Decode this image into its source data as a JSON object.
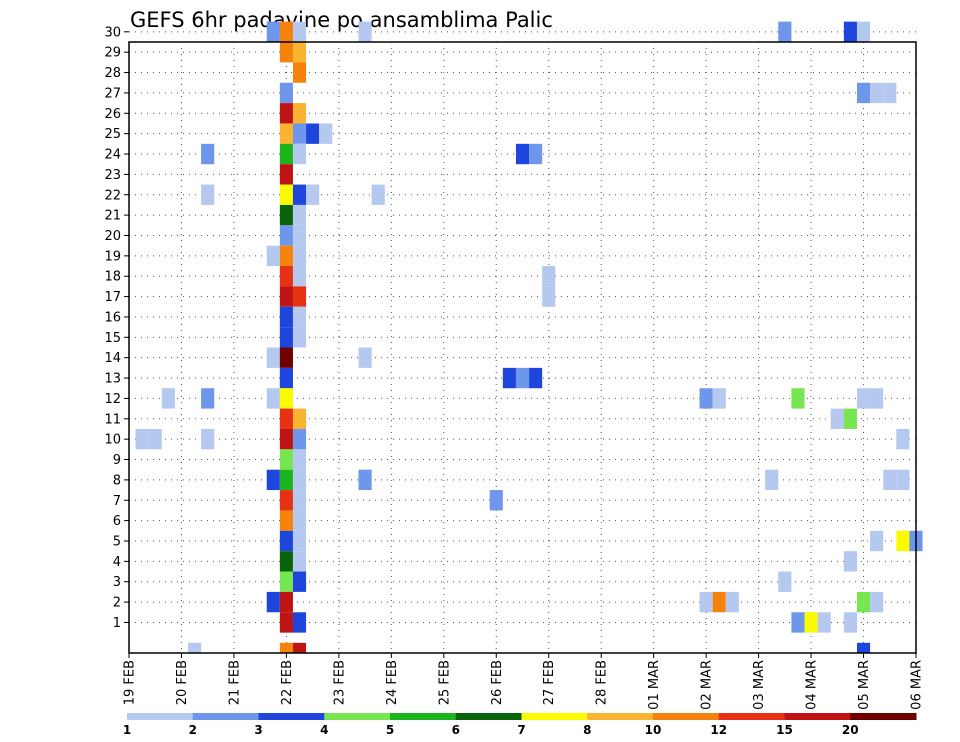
{
  "chart_data": {
    "type": "heatmap",
    "title": "GEFS 6hr padavine po ansamblima Palic",
    "xlabel": "",
    "ylabel": "",
    "x_ticks": [
      "19 FEB",
      "20 FEB",
      "21 FEB",
      "22 FEB",
      "23 FEB",
      "24 FEB",
      "25 FEB",
      "26 FEB",
      "27 FEB",
      "28 FEB",
      "01 MAR",
      "02 MAR",
      "03 MAR",
      "04 MAR",
      "05 MAR",
      "06 MAR"
    ],
    "y_ticks": [
      "1",
      "2",
      "3",
      "4",
      "5",
      "6",
      "7",
      "8",
      "9",
      "10",
      "11",
      "12",
      "13",
      "14",
      "15",
      "16",
      "17",
      "18",
      "19",
      "20",
      "21",
      "22",
      "23",
      "24",
      "25",
      "26",
      "27",
      "28",
      "29",
      "30"
    ],
    "grid": true,
    "legend": {
      "position": "bottom",
      "colors": [
        "#b4c8f0",
        "#6e96eb",
        "#1e46dc",
        "#78e650",
        "#1eb41e",
        "#0a640a",
        "#fafa00",
        "#fab432",
        "#f5820a",
        "#e63214",
        "#be1414",
        "#6e0000"
      ],
      "labels": [
        "1",
        "2",
        "3",
        "4",
        "5",
        "6",
        "7",
        "8",
        "10",
        "12",
        "15",
        "20"
      ]
    },
    "cells": [
      {
        "t": 11,
        "m": 30,
        "c": 2
      },
      {
        "t": 12,
        "m": 30,
        "c": 9
      },
      {
        "t": 13,
        "m": 30,
        "c": 1
      },
      {
        "t": 18,
        "m": 30,
        "c": 1
      },
      {
        "t": 50,
        "m": 30,
        "c": 2
      },
      {
        "t": 55,
        "m": 30,
        "c": 3
      },
      {
        "t": 56,
        "m": 30,
        "c": 1
      },
      {
        "t": 12,
        "m": 29,
        "c": 9
      },
      {
        "t": 13,
        "m": 29,
        "c": 8
      },
      {
        "t": 13,
        "m": 28,
        "c": 9
      },
      {
        "t": 12,
        "m": 27,
        "c": 2
      },
      {
        "t": 56,
        "m": 27,
        "c": 2
      },
      {
        "t": 57,
        "m": 27,
        "c": 1
      },
      {
        "t": 58,
        "m": 27,
        "c": 1
      },
      {
        "t": 12,
        "m": 26,
        "c": 11
      },
      {
        "t": 13,
        "m": 26,
        "c": 8
      },
      {
        "t": 12,
        "m": 25,
        "c": 8
      },
      {
        "t": 13,
        "m": 25,
        "c": 2
      },
      {
        "t": 14,
        "m": 25,
        "c": 3
      },
      {
        "t": 15,
        "m": 25,
        "c": 1
      },
      {
        "t": 6,
        "m": 24,
        "c": 2
      },
      {
        "t": 12,
        "m": 24,
        "c": 5
      },
      {
        "t": 13,
        "m": 24,
        "c": 1
      },
      {
        "t": 30,
        "m": 24,
        "c": 3
      },
      {
        "t": 31,
        "m": 24,
        "c": 2
      },
      {
        "t": 12,
        "m": 23,
        "c": 11
      },
      {
        "t": 6,
        "m": 22,
        "c": 1
      },
      {
        "t": 12,
        "m": 22,
        "c": 7
      },
      {
        "t": 13,
        "m": 22,
        "c": 3
      },
      {
        "t": 14,
        "m": 22,
        "c": 1
      },
      {
        "t": 19,
        "m": 22,
        "c": 1
      },
      {
        "t": 12,
        "m": 21,
        "c": 6
      },
      {
        "t": 13,
        "m": 21,
        "c": 1
      },
      {
        "t": 12,
        "m": 20,
        "c": 2
      },
      {
        "t": 13,
        "m": 20,
        "c": 1
      },
      {
        "t": 11,
        "m": 19,
        "c": 1
      },
      {
        "t": 12,
        "m": 19,
        "c": 9
      },
      {
        "t": 13,
        "m": 19,
        "c": 1
      },
      {
        "t": 12,
        "m": 18,
        "c": 10
      },
      {
        "t": 13,
        "m": 18,
        "c": 1
      },
      {
        "t": 32,
        "m": 18,
        "c": 1
      },
      {
        "t": 12,
        "m": 17,
        "c": 11
      },
      {
        "t": 13,
        "m": 17,
        "c": 10
      },
      {
        "t": 32,
        "m": 17,
        "c": 1
      },
      {
        "t": 12,
        "m": 16,
        "c": 3
      },
      {
        "t": 13,
        "m": 16,
        "c": 1
      },
      {
        "t": 12,
        "m": 15,
        "c": 3
      },
      {
        "t": 13,
        "m": 15,
        "c": 1
      },
      {
        "t": 11,
        "m": 14,
        "c": 1
      },
      {
        "t": 12,
        "m": 14,
        "c": 12
      },
      {
        "t": 18,
        "m": 14,
        "c": 1
      },
      {
        "t": 12,
        "m": 13,
        "c": 3
      },
      {
        "t": 29,
        "m": 13,
        "c": 3
      },
      {
        "t": 30,
        "m": 13,
        "c": 2
      },
      {
        "t": 31,
        "m": 13,
        "c": 3
      },
      {
        "t": 3,
        "m": 12,
        "c": 1
      },
      {
        "t": 6,
        "m": 12,
        "c": 2
      },
      {
        "t": 11,
        "m": 12,
        "c": 1
      },
      {
        "t": 12,
        "m": 12,
        "c": 7
      },
      {
        "t": 44,
        "m": 12,
        "c": 2
      },
      {
        "t": 45,
        "m": 12,
        "c": 1
      },
      {
        "t": 51,
        "m": 12,
        "c": 4
      },
      {
        "t": 56,
        "m": 12,
        "c": 1
      },
      {
        "t": 57,
        "m": 12,
        "c": 1
      },
      {
        "t": 12,
        "m": 11,
        "c": 10
      },
      {
        "t": 13,
        "m": 11,
        "c": 8
      },
      {
        "t": 54,
        "m": 11,
        "c": 1
      },
      {
        "t": 55,
        "m": 11,
        "c": 4
      },
      {
        "t": 1,
        "m": 10,
        "c": 1
      },
      {
        "t": 2,
        "m": 10,
        "c": 1
      },
      {
        "t": 6,
        "m": 10,
        "c": 1
      },
      {
        "t": 12,
        "m": 10,
        "c": 11
      },
      {
        "t": 13,
        "m": 10,
        "c": 2
      },
      {
        "t": 59,
        "m": 10,
        "c": 1
      },
      {
        "t": 12,
        "m": 9,
        "c": 4
      },
      {
        "t": 13,
        "m": 9,
        "c": 1
      },
      {
        "t": 11,
        "m": 8,
        "c": 3
      },
      {
        "t": 12,
        "m": 8,
        "c": 5
      },
      {
        "t": 13,
        "m": 8,
        "c": 1
      },
      {
        "t": 18,
        "m": 8,
        "c": 2
      },
      {
        "t": 49,
        "m": 8,
        "c": 1
      },
      {
        "t": 58,
        "m": 8,
        "c": 1
      },
      {
        "t": 59,
        "m": 8,
        "c": 1
      },
      {
        "t": 12,
        "m": 7,
        "c": 10
      },
      {
        "t": 13,
        "m": 7,
        "c": 1
      },
      {
        "t": 28,
        "m": 7,
        "c": 2
      },
      {
        "t": 12,
        "m": 6,
        "c": 9
      },
      {
        "t": 13,
        "m": 6,
        "c": 1
      },
      {
        "t": 12,
        "m": 5,
        "c": 3
      },
      {
        "t": 13,
        "m": 5,
        "c": 1
      },
      {
        "t": 57,
        "m": 5,
        "c": 1
      },
      {
        "t": 59,
        "m": 5,
        "c": 7
      },
      {
        "t": 60,
        "m": 5,
        "c": 2
      },
      {
        "t": 12,
        "m": 4,
        "c": 6
      },
      {
        "t": 13,
        "m": 4,
        "c": 1
      },
      {
        "t": 55,
        "m": 4,
        "c": 1
      },
      {
        "t": 12,
        "m": 3,
        "c": 4
      },
      {
        "t": 13,
        "m": 3,
        "c": 3
      },
      {
        "t": 50,
        "m": 3,
        "c": 1
      },
      {
        "t": 11,
        "m": 2,
        "c": 3
      },
      {
        "t": 12,
        "m": 2,
        "c": 11
      },
      {
        "t": 44,
        "m": 2,
        "c": 1
      },
      {
        "t": 45,
        "m": 2,
        "c": 9
      },
      {
        "t": 46,
        "m": 2,
        "c": 1
      },
      {
        "t": 56,
        "m": 2,
        "c": 4
      },
      {
        "t": 57,
        "m": 2,
        "c": 1
      },
      {
        "t": 12,
        "m": 1,
        "c": 11
      },
      {
        "t": 13,
        "m": 1,
        "c": 3
      },
      {
        "t": 51,
        "m": 1,
        "c": 2
      },
      {
        "t": 52,
        "m": 1,
        "c": 7
      },
      {
        "t": 53,
        "m": 1,
        "c": 1
      },
      {
        "t": 55,
        "m": 1,
        "c": 1
      },
      {
        "t": 5,
        "m": 0,
        "c": 1
      },
      {
        "t": 12,
        "m": 0,
        "c": 9
      },
      {
        "t": 13,
        "m": 0,
        "c": 11
      },
      {
        "t": 56,
        "m": 0,
        "c": 3
      }
    ]
  }
}
